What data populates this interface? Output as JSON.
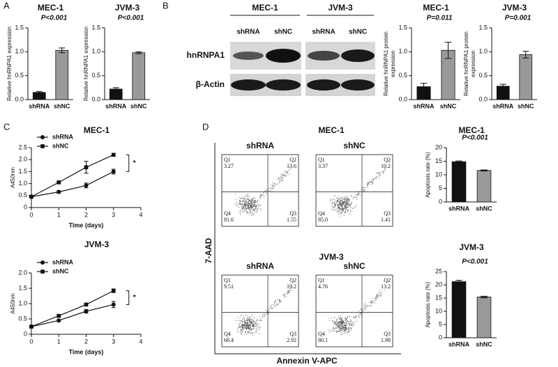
{
  "panel_labels": [
    "A",
    "B",
    "C",
    "D"
  ],
  "blot": {
    "groups": [
      "MEC-1",
      "JVM-3"
    ],
    "lanes": [
      "shRNA",
      "shNC",
      "shRNA",
      "shNC"
    ],
    "rows": [
      "hnRNPA1",
      "β-Actin"
    ]
  },
  "flow": {
    "y_label": "7-AAD",
    "x_label": "Annexin V-APC",
    "panels": [
      {
        "title": "MEC-1",
        "plots": [
          {
            "name": "shRNA",
            "quadrants": [
              [
                "Q1",
                "3.27"
              ],
              [
                "Q2",
                "13.6"
              ],
              [
                "Q3",
                "1.55"
              ],
              [
                "Q4",
                "81.6"
              ]
            ]
          },
          {
            "name": "shNC",
            "quadrants": [
              [
                "Q1",
                "3.37"
              ],
              [
                "Q2",
                "10.2"
              ],
              [
                "Q3",
                "1.41"
              ],
              [
                "Q4",
                "85.0"
              ]
            ]
          }
        ]
      },
      {
        "title": "JVM-3",
        "plots": [
          {
            "name": "shRNA",
            "quadrants": [
              [
                "Q1",
                "9.51"
              ],
              [
                "Q2",
                "19.2"
              ],
              [
                "Q3",
                "2.92"
              ],
              [
                "Q4",
                "68.4"
              ]
            ]
          },
          {
            "name": "shNC",
            "quadrants": [
              [
                "Q1",
                "4.76"
              ],
              [
                "Q2",
                "13.2"
              ],
              [
                "Q3",
                "1.98"
              ],
              [
                "Q4",
                "80.1"
              ]
            ]
          }
        ]
      }
    ]
  },
  "chart_data": [
    {
      "type": "bar",
      "title": "MEC-1",
      "annotation": "P<0.001",
      "ylabel": [
        "Relative hnRNPA1 expression"
      ],
      "categories": [
        "shRNA",
        "shNC"
      ],
      "values": [
        0.15,
        1.03
      ],
      "errors": [
        0.02,
        0.05
      ],
      "colors": [
        "#111111",
        "#999999"
      ],
      "ylim": [
        0,
        1.5
      ],
      "yticks": [
        {
          "value": 0,
          "label": "0.0"
        },
        0.5,
        {
          "value": 1,
          "label": "1.0"
        },
        1.5
      ]
    },
    {
      "type": "bar",
      "title": "JVM-3",
      "annotation": "P<0.001",
      "ylabel": [
        "Relative hnRNPA1 expression"
      ],
      "categories": [
        "shRNA",
        "shNC"
      ],
      "values": [
        0.22,
        0.98
      ],
      "errors": [
        0.03,
        0.02
      ],
      "colors": [
        "#111111",
        "#999999"
      ],
      "ylim": [
        0,
        1.5
      ],
      "yticks": [
        {
          "value": 0,
          "label": "0.0"
        },
        0.5,
        {
          "value": 1,
          "label": "1.0"
        },
        1.5
      ]
    },
    {
      "type": "bar",
      "title": "MEC-1",
      "annotation": "P=0.011",
      "ylabel": [
        "Relative hnRNPA1 protein",
        "expression"
      ],
      "categories": [
        "shRNA",
        "shNC"
      ],
      "values": [
        0.27,
        1.03
      ],
      "errors": [
        0.07,
        0.17
      ],
      "colors": [
        "#111111",
        "#999999"
      ],
      "ylim": [
        0,
        1.5
      ],
      "yticks": [
        {
          "value": 0,
          "label": "0.0"
        },
        0.5,
        {
          "value": 1,
          "label": "1.0"
        },
        1.5
      ]
    },
    {
      "type": "bar",
      "title": "JVM-3",
      "annotation": "P=0.001",
      "ylabel": [
        "Relative hnRNPA1 protein",
        "expression"
      ],
      "categories": [
        "shRNA",
        "shNC"
      ],
      "values": [
        0.28,
        0.94
      ],
      "errors": [
        0.04,
        0.07
      ],
      "colors": [
        "#111111",
        "#999999"
      ],
      "ylim": [
        0,
        1.5
      ],
      "yticks": [
        {
          "value": 0,
          "label": "0.0"
        },
        0.5,
        {
          "value": 1,
          "label": "1.0"
        },
        1.5
      ]
    },
    {
      "type": "line",
      "title": "MEC-1",
      "annotation": "*",
      "xlabel": "Time (days)",
      "ylabel": [
        "A450nm"
      ],
      "x": [
        0,
        1,
        2,
        3
      ],
      "series": [
        {
          "name": "shRNA",
          "color": "#111111",
          "marker": "circle",
          "values": [
            0.45,
            0.65,
            0.92,
            1.5
          ],
          "errors": [
            0.03,
            0.05,
            0.1,
            0.1
          ]
        },
        {
          "name": "shNC",
          "color": "#111111",
          "marker": "square",
          "values": [
            0.45,
            1.05,
            1.68,
            2.2
          ],
          "errors": [
            0.03,
            0.03,
            0.25,
            0.06
          ]
        }
      ],
      "xlim": [
        0,
        4
      ],
      "xticks": [
        0,
        1,
        2,
        3,
        4
      ],
      "ylim": [
        0,
        2.5
      ],
      "yticks": [
        0,
        0.5,
        {
          "value": 1,
          "label": "1.0"
        },
        1.5,
        {
          "value": 2,
          "label": "2.0"
        },
        2.5
      ]
    },
    {
      "type": "line",
      "title": "JVM-3",
      "annotation": "*",
      "xlabel": "Time (days)",
      "ylabel": [
        "A450nm"
      ],
      "x": [
        0,
        1,
        2,
        3
      ],
      "series": [
        {
          "name": "shRNA",
          "color": "#111111",
          "marker": "circle",
          "values": [
            0.25,
            0.45,
            0.75,
            0.97
          ],
          "errors": [
            0.02,
            0.03,
            0.06,
            0.1
          ]
        },
        {
          "name": "shNC",
          "color": "#111111",
          "marker": "square",
          "values": [
            0.25,
            0.6,
            0.97,
            1.42
          ],
          "errors": [
            0.02,
            0.04,
            0.03,
            0.06
          ]
        }
      ],
      "xlim": [
        0,
        4
      ],
      "xticks": [
        0,
        1,
        2,
        3,
        4
      ],
      "ylim": [
        0,
        2
      ],
      "yticks": [
        0,
        0.5,
        {
          "value": 1,
          "label": "1.0"
        },
        1.5,
        {
          "value": 2,
          "label": "2.0"
        }
      ]
    },
    {
      "type": "bar",
      "title": "MEC-1",
      "annotation": "P<0.001",
      "ylabel": [
        "Apoptosis rate (%)"
      ],
      "categories": [
        "shRNA",
        "shNC"
      ],
      "values": [
        14.8,
        11.6
      ],
      "errors": [
        0.3,
        0.2
      ],
      "colors": [
        "#111111",
        "#999999"
      ],
      "ylim": [
        0,
        20
      ],
      "yticks": [
        0,
        5,
        10,
        15,
        20
      ]
    },
    {
      "type": "bar",
      "title": "JVM-3",
      "annotation": "P<0.001",
      "ylabel": [
        "Apoptosis rate (%)"
      ],
      "categories": [
        "shRNA",
        "shNC"
      ],
      "values": [
        21.2,
        15.4
      ],
      "errors": [
        0.5,
        0.3
      ],
      "colors": [
        "#111111",
        "#999999"
      ],
      "ylim": [
        0,
        25
      ],
      "yticks": [
        0,
        5,
        10,
        15,
        20,
        25
      ]
    }
  ]
}
